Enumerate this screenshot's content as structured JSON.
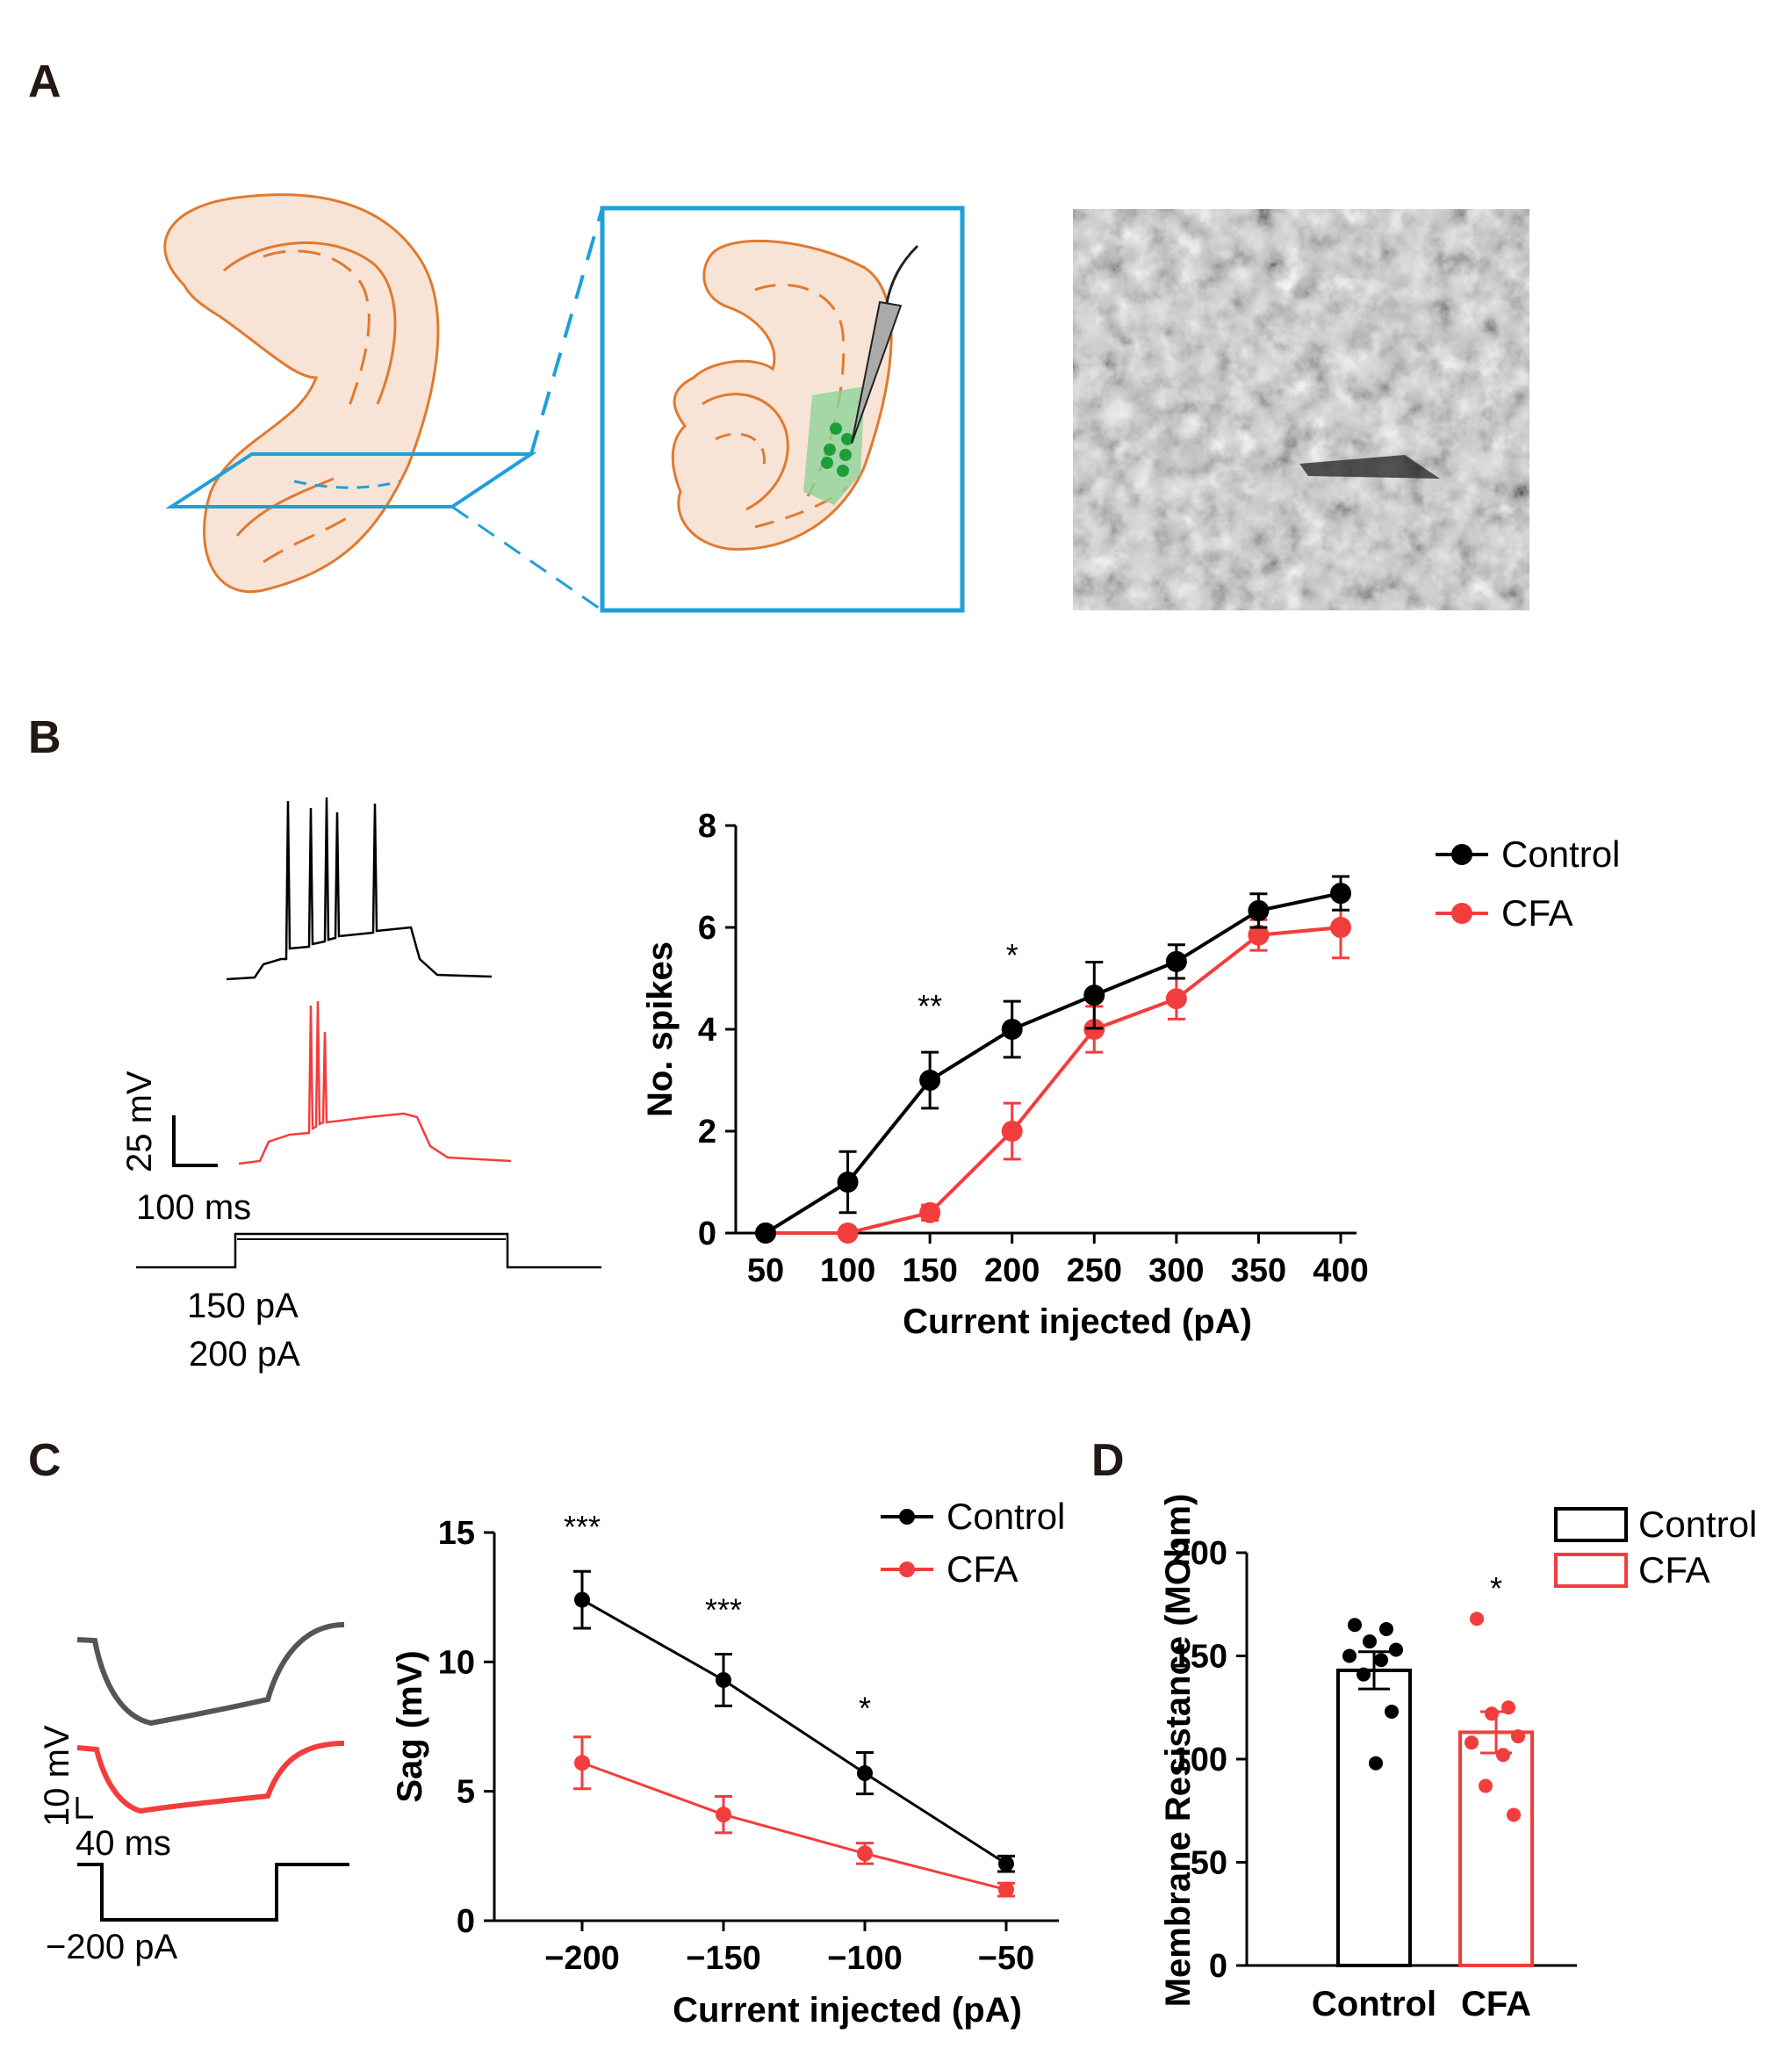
{
  "panels": {
    "a": "A",
    "b": "B",
    "c": "C",
    "d": "D"
  },
  "colors": {
    "control": "#000000",
    "cfa": "#f23d3d",
    "box": "#1fa0d8",
    "tissue": "#f8e4d6",
    "tissue_edge": "#e07a30"
  },
  "trace_labels": {
    "b_scale_mv": "25 mV",
    "b_scale_ms": "100 ms",
    "b_current_1": "150 pA",
    "b_current_2": "200 pA",
    "c_scale_mv": "10 mV",
    "c_scale_ms": "40 ms",
    "c_current": "−200 pA"
  },
  "chart_data": [
    {
      "id": "B",
      "type": "line",
      "title": "",
      "xlabel": "Current injected (pA)",
      "ylabel": "No. spikes",
      "xticks": [
        "50",
        "100",
        "150",
        "200",
        "250",
        "300",
        "350",
        "400"
      ],
      "x": [
        50,
        100,
        150,
        200,
        250,
        300,
        350,
        400
      ],
      "yticks": [
        "0",
        "2",
        "4",
        "6",
        "8"
      ],
      "ylim": [
        0,
        8
      ],
      "series": [
        {
          "name": "Control",
          "values": [
            0,
            1.0,
            3.0,
            4.0,
            4.67,
            5.33,
            6.33,
            6.67
          ],
          "errors": [
            0,
            0.6,
            0.55,
            0.55,
            0.65,
            0.33,
            0.33,
            0.33
          ]
        },
        {
          "name": "CFA",
          "values": [
            0,
            0,
            0.4,
            2.0,
            4.0,
            4.6,
            5.85,
            6.0
          ],
          "errors": [
            0,
            0,
            0.15,
            0.55,
            0.45,
            0.4,
            0.3,
            0.6
          ]
        }
      ],
      "annotations": [
        {
          "x": 150,
          "text": "**"
        },
        {
          "x": 200,
          "text": "*"
        }
      ]
    },
    {
      "id": "C",
      "type": "line",
      "title": "",
      "xlabel": "Current injected (pA)",
      "ylabel": "Sag (mV)",
      "xticks": [
        "−200",
        "−150",
        "−100",
        "−50"
      ],
      "x": [
        -200,
        -150,
        -100,
        -50
      ],
      "yticks": [
        "0",
        "5",
        "10",
        "15"
      ],
      "ylim": [
        0,
        15
      ],
      "series": [
        {
          "name": "Control",
          "values": [
            12.4,
            9.3,
            5.7,
            2.2
          ],
          "errors": [
            1.1,
            1.0,
            0.8,
            0.3
          ]
        },
        {
          "name": "CFA",
          "values": [
            6.1,
            4.1,
            2.6,
            1.2
          ],
          "errors": [
            1.0,
            0.7,
            0.4,
            0.25
          ]
        }
      ],
      "annotations": [
        {
          "x": -200,
          "text": "***"
        },
        {
          "x": -150,
          "text": "***"
        },
        {
          "x": -100,
          "text": "*"
        }
      ]
    },
    {
      "id": "D",
      "type": "bar",
      "title": "",
      "xlabel": "",
      "ylabel": "Membrane Resistance (MOhm)",
      "categories": [
        "Control",
        "CFA"
      ],
      "values": [
        143,
        113
      ],
      "errors": [
        9,
        10
      ],
      "yticks": [
        "0",
        "50",
        "100",
        "150",
        "200"
      ],
      "ylim": [
        0,
        200
      ],
      "points": [
        [
          165,
          163,
          157,
          153,
          150,
          148,
          141,
          123,
          98
        ],
        [
          168,
          125,
          122,
          111,
          108,
          102,
          87,
          73
        ]
      ],
      "legend": [
        "Control",
        "CFA"
      ],
      "annotations": [
        {
          "category": "CFA",
          "text": "*"
        }
      ]
    }
  ]
}
